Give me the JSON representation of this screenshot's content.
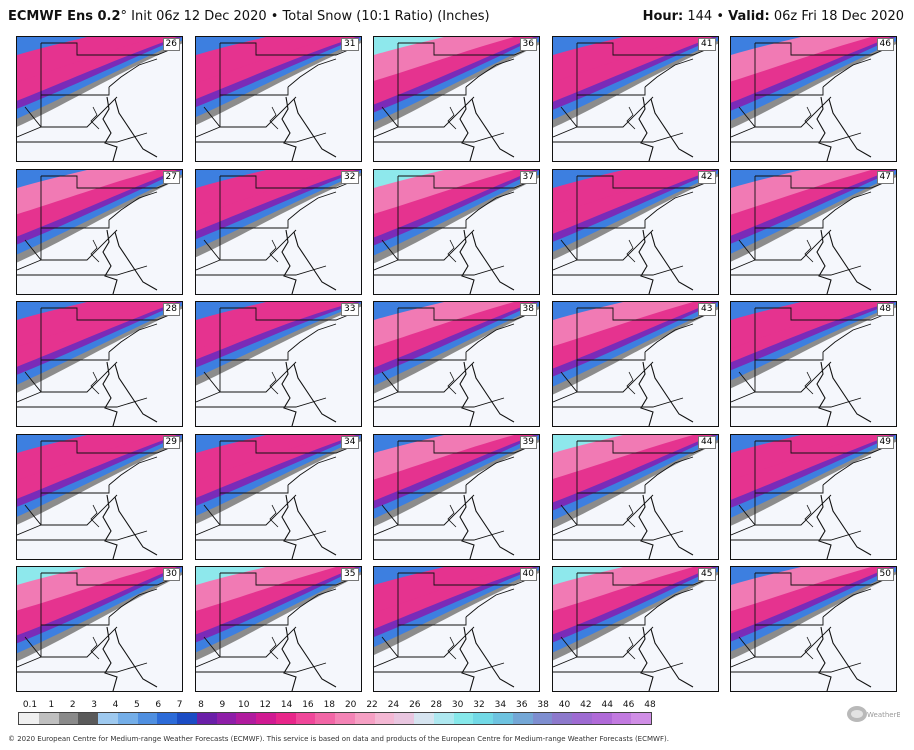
{
  "header": {
    "model": "ECMWF Ens 0.2",
    "degree": "°",
    "init_text": " Init 06z 12 Dec 2020 • Total Snow (10:1 Ratio) (Inches)",
    "hour_label": "Hour:",
    "hour_value": " 144 • ",
    "valid_label": "Valid:",
    "valid_value": " 06z Fri 18 Dec 2020"
  },
  "members": [
    "26",
    "31",
    "36",
    "41",
    "46",
    "27",
    "32",
    "37",
    "42",
    "47",
    "28",
    "33",
    "38",
    "43",
    "48",
    "29",
    "34",
    "39",
    "44",
    "49",
    "30",
    "35",
    "40",
    "45",
    "50"
  ],
  "panel_intensity": [
    0.7,
    0.6,
    0.9,
    0.75,
    0.8,
    0.85,
    0.55,
    0.9,
    0.7,
    0.8,
    0.75,
    0.35,
    0.8,
    0.85,
    0.5,
    0.7,
    0.65,
    0.8,
    0.9,
    0.75,
    0.95,
    0.9,
    0.6,
    0.9,
    0.85
  ],
  "colorbar": {
    "tick_labels": [
      "0.1",
      "1",
      "2",
      "3",
      "4",
      "5",
      "6",
      "7",
      "8",
      "9",
      "10",
      "12",
      "14",
      "16",
      "18",
      "20",
      "22",
      "24",
      "26",
      "28",
      "30",
      "32",
      "34",
      "36",
      "38",
      "40",
      "42",
      "44",
      "46",
      "48"
    ],
    "colors": [
      "#f0f0f0",
      "#bfbfbf",
      "#8a8a8a",
      "#5a5a5a",
      "#9ec9ef",
      "#74aee8",
      "#4f8fe0",
      "#2c6bd8",
      "#1b4cc4",
      "#6a1fa8",
      "#8e1ea8",
      "#b01b9e",
      "#d01a92",
      "#e8268a",
      "#f0479a",
      "#f266a6",
      "#f484b6",
      "#f6a0c4",
      "#f4b8d4",
      "#e9c6e0",
      "#d6e4f0",
      "#aee8f0",
      "#86e8ea",
      "#72d9e6",
      "#6ec3e0",
      "#74a7d6",
      "#7e8ed0",
      "#8d79cc",
      "#9e6bd2",
      "#b06ad8",
      "#c27ae0",
      "#d08ee6"
    ]
  },
  "footer": "© 2020 European Centre for Medium-range Weather Forecasts (ECMWF). This service is based on data and products of the European Centre for Medium-range Weather Forecasts (ECMWF).",
  "logo_text": "WeatherBELL",
  "colors": {
    "land_bg": "#f5f7fc",
    "gray": "#8c8c8c",
    "blue": "#3d7fe0",
    "purple": "#7a2bb8",
    "magenta": "#e5338f",
    "pink": "#f17ab4",
    "cyan": "#8ee8ec"
  }
}
